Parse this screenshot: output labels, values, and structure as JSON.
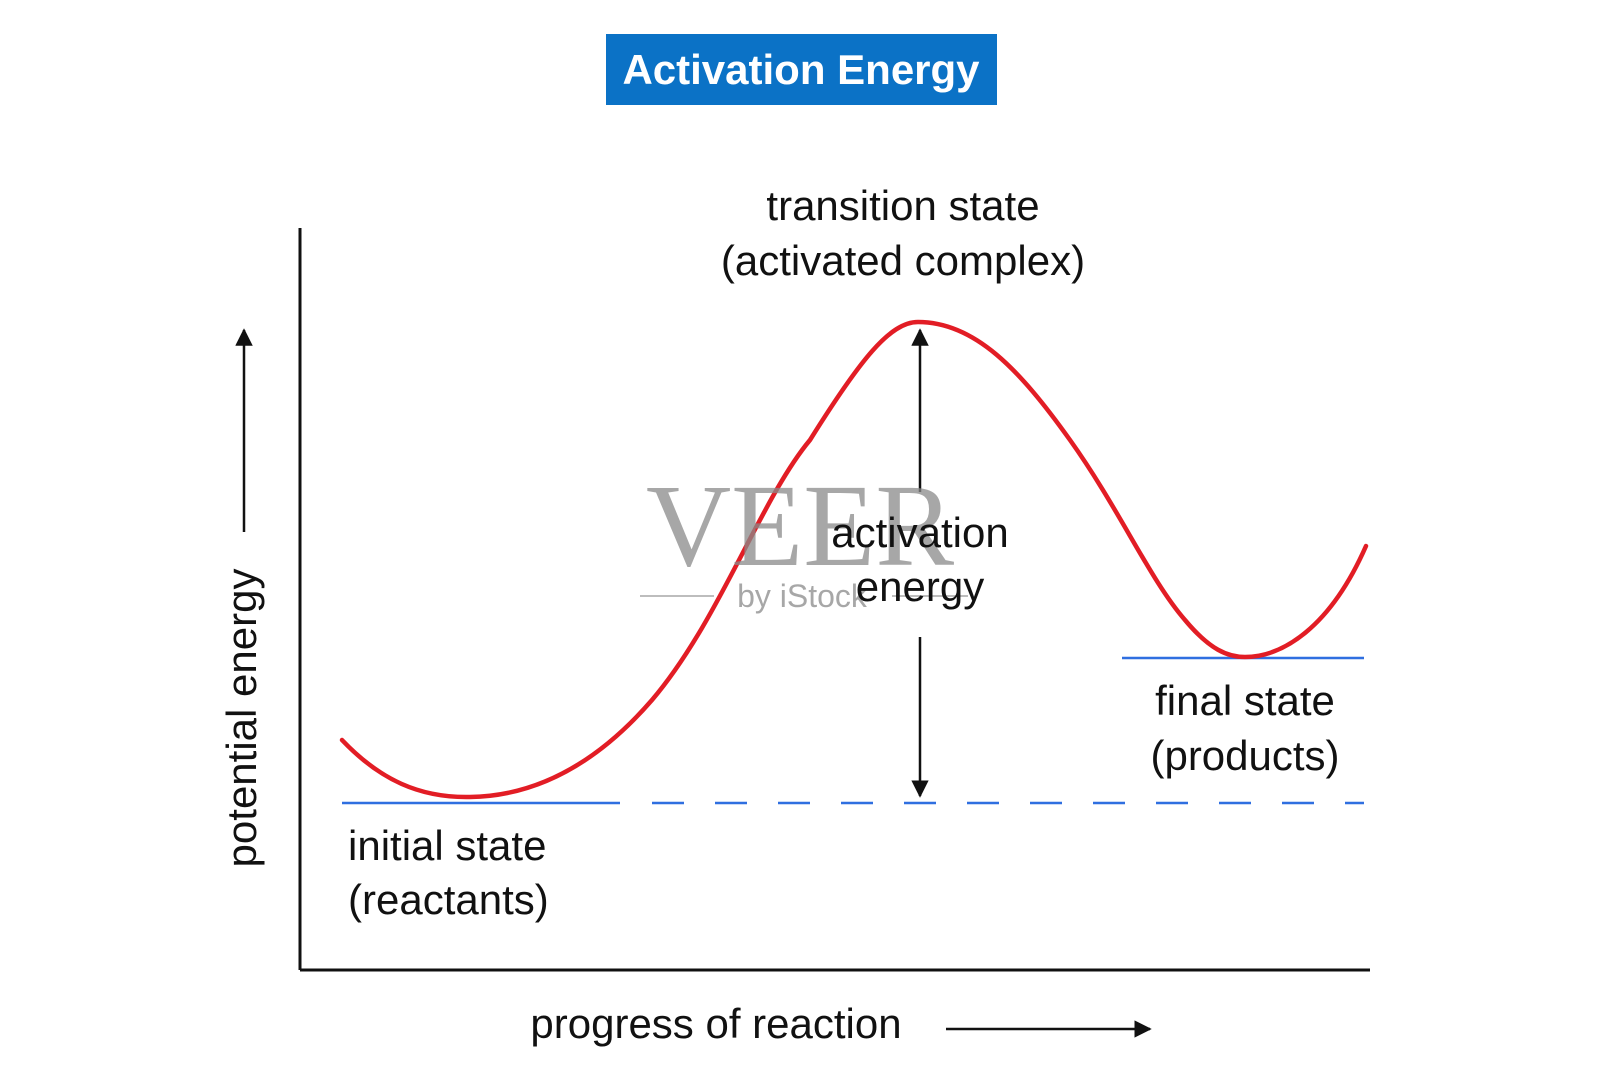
{
  "title": "Activation Energy",
  "labels": {
    "transition_line1": "transition state",
    "transition_line2": "(activated complex)",
    "activation_line1": "activation",
    "activation_line2": "energy",
    "final_line1": "final state",
    "final_line2": "(products)",
    "initial_line1": "initial state",
    "initial_line2": "(reactants)",
    "y_axis": "potential energy",
    "x_axis": "progress of reaction"
  },
  "watermark": {
    "brand": "VEER",
    "byline": "by iStock"
  },
  "colors": {
    "title_bg": "#0b72c6",
    "curve": "#e21d25",
    "energy_level_line": "#2f6fe0",
    "axis": "#111111"
  }
}
